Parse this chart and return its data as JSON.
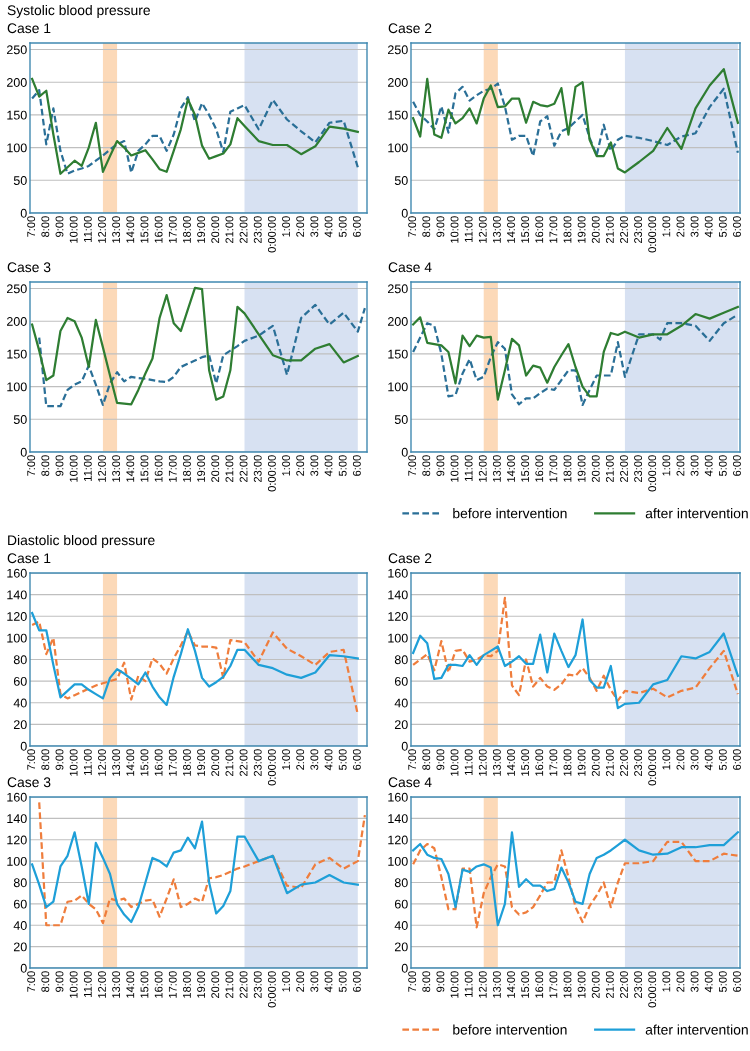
{
  "chart_data": [
    {
      "type": "line",
      "title": "Systolic blood pressure",
      "subtitle": "Case 1",
      "grid": "y",
      "ylim": [
        0,
        260
      ],
      "yticks": [
        0,
        50,
        100,
        150,
        200,
        250
      ],
      "categories": [
        "7:00",
        null,
        "8:00",
        null,
        "9:00",
        null,
        "10:00",
        null,
        "11:00",
        null,
        "12:00",
        null,
        "13:00",
        null,
        "14:00",
        null,
        "15:00",
        null,
        "16:00",
        null,
        "17:00",
        null,
        "18:00",
        null,
        "19:00",
        null,
        "20:00",
        null,
        "21:00",
        null,
        "22:00",
        null,
        "23:00",
        null,
        "0:00:00",
        null,
        "1:00",
        null,
        "2:00",
        null,
        "3:00",
        null,
        "4:00",
        null,
        "5:00",
        null,
        "6:00",
        null
      ],
      "bands": [
        {
          "axis": "x",
          "from": "12:00",
          "to": "13:00",
          "color": "#fcd9b8"
        },
        {
          "axis": "x",
          "from": "22:00",
          "to": "6:00",
          "color": "#d7e1f2"
        }
      ],
      "series": [
        {
          "color": "#2a6f97",
          "line_style": "dashed",
          "values": [
            175,
            188,
            105,
            160,
            95,
            60,
            65,
            68,
            72,
            80,
            88,
            97,
            105,
            110,
            62,
            95,
            105,
            118,
            118,
            95,
            120,
            160,
            177,
            140,
            168,
            150,
            128,
            93,
            155,
            160,
            165,
            null,
            128,
            null,
            173,
            null,
            143,
            null,
            125,
            null,
            108,
            null,
            138,
            null,
            141,
            null,
            70,
            null
          ]
        },
        {
          "color": "#2e7d32",
          "line_style": "solid",
          "values": [
            205,
            178,
            187,
            120,
            60,
            70,
            80,
            72,
            100,
            138,
            63,
            87,
            110,
            100,
            88,
            92,
            96,
            82,
            67,
            63,
            95,
            128,
            174,
            150,
            103,
            83,
            87,
            91,
            105,
            145,
            133,
            null,
            110,
            null,
            104,
            null,
            104,
            null,
            90,
            null,
            102,
            null,
            132,
            null,
            129,
            null,
            124,
            null
          ]
        }
      ]
    },
    {
      "type": "line",
      "subtitle": "Case 2",
      "grid": "y",
      "ylim": [
        0,
        260
      ],
      "yticks": [
        0,
        50,
        100,
        150,
        200,
        250
      ],
      "categories": [
        "7:00",
        null,
        "8:00",
        null,
        "9:00",
        null,
        "10:00",
        null,
        "11:00",
        null,
        "12:00",
        null,
        "13:00",
        null,
        "14:00",
        null,
        "15:00",
        null,
        "16:00",
        null,
        "17:00",
        null,
        "18:00",
        null,
        "19:00",
        null,
        "20:00",
        null,
        "21:00",
        null,
        "22:00",
        null,
        "23:00",
        null,
        "0:00:00",
        null,
        "1:00",
        null,
        "2:00",
        null,
        "3:00",
        null,
        "4:00",
        null,
        "5:00",
        null,
        "6:00"
      ],
      "bands": [
        {
          "axis": "x",
          "from": "12:00",
          "to": "13:00",
          "color": "#fcd9b8"
        },
        {
          "axis": "x",
          "from": "22:00",
          "to": "6:00",
          "color": "#d7e1f2"
        }
      ],
      "series": [
        {
          "color": "#2a6f97",
          "line_style": "dashed",
          "values": [
            170,
            150,
            140,
            128,
            163,
            123,
            183,
            193,
            172,
            180,
            187,
            190,
            198,
            163,
            112,
            118,
            118,
            87,
            140,
            148,
            103,
            125,
            130,
            140,
            150,
            115,
            88,
            135,
            95,
            112,
            118,
            null,
            115,
            null,
            110,
            null,
            104,
            null,
            117,
            null,
            122,
            null,
            162,
            null,
            190,
            null,
            92
          ]
        },
        {
          "color": "#2e7d32",
          "line_style": "solid",
          "values": [
            145,
            117,
            205,
            120,
            115,
            158,
            137,
            145,
            160,
            137,
            175,
            195,
            162,
            163,
            175,
            175,
            138,
            170,
            165,
            163,
            167,
            191,
            120,
            193,
            200,
            112,
            87,
            87,
            108,
            68,
            62,
            null,
            78,
            null,
            95,
            null,
            130,
            null,
            98,
            null,
            160,
            null,
            195,
            null,
            220,
            null,
            138
          ]
        }
      ]
    },
    {
      "type": "line",
      "subtitle": "Case 3",
      "grid": "y",
      "ylim": [
        0,
        260
      ],
      "yticks": [
        0,
        50,
        100,
        150,
        200,
        250
      ],
      "categories": [
        "7:00",
        null,
        "8:00",
        null,
        "9:00",
        null,
        "10:00",
        null,
        "11:00",
        null,
        "12:00",
        null,
        "13:00",
        null,
        "14:00",
        null,
        "15:00",
        null,
        "16:00",
        null,
        "17:00",
        null,
        "18:00",
        null,
        "19:00",
        null,
        "20:00",
        null,
        "21:00",
        null,
        "22:00",
        null,
        "23:00",
        null,
        "0:00:00",
        null,
        "1:00",
        null,
        "2:00",
        null,
        "3:00",
        null,
        "4:00",
        null,
        "5:00",
        null,
        "6:00",
        null
      ],
      "bands": [
        {
          "axis": "x",
          "from": "12:00",
          "to": "13:00",
          "color": "#fcd9b8"
        },
        {
          "axis": "x",
          "from": "22:00",
          "to": "6:00",
          "color": "#d7e1f2"
        }
      ],
      "series": [
        {
          "color": "#2a6f97",
          "line_style": "dashed",
          "values": [
            null,
            175,
            70,
            70,
            70,
            95,
            103,
            108,
            132,
            103,
            72,
            105,
            122,
            108,
            115,
            113,
            112,
            110,
            108,
            107,
            115,
            130,
            135,
            140,
            145,
            148,
            105,
            148,
            155,
            162,
            170,
            null,
            178,
            null,
            193,
            null,
            118,
            null,
            205,
            null,
            225,
            null,
            195,
            null,
            213,
            null,
            184,
            220
          ]
        },
        {
          "color": "#2e7d32",
          "line_style": "solid",
          "values": [
            195,
            155,
            110,
            117,
            185,
            205,
            200,
            175,
            130,
            202,
            160,
            117,
            75,
            74,
            73,
            95,
            120,
            143,
            205,
            240,
            197,
            185,
            218,
            251,
            249,
            125,
            80,
            85,
            125,
            222,
            212,
            null,
            180,
            null,
            148,
            null,
            140,
            null,
            140,
            null,
            158,
            null,
            165,
            null,
            137,
            null,
            147,
            null
          ]
        }
      ]
    },
    {
      "type": "line",
      "subtitle": "Case 4",
      "grid": "y",
      "legend": "bottom",
      "ylim": [
        0,
        260
      ],
      "yticks": [
        0,
        50,
        100,
        150,
        200,
        250
      ],
      "categories": [
        "7:00",
        null,
        "8:00",
        null,
        "9:00",
        null,
        "10:00",
        null,
        "11:00",
        null,
        "12:00",
        null,
        "13:00",
        null,
        "14:00",
        null,
        "15:00",
        null,
        "16:00",
        null,
        "17:00",
        null,
        "18:00",
        null,
        "19:00",
        null,
        "20:00",
        null,
        "21:00",
        null,
        "22:00",
        null,
        "23:00",
        null,
        "0:00:00",
        null,
        "1:00",
        null,
        "2:00",
        null,
        "3:00",
        null,
        "4:00",
        null,
        "5:00",
        null,
        "6:00"
      ],
      "bands": [
        {
          "axis": "x",
          "from": "12:00",
          "to": "13:00",
          "color": "#fcd9b8"
        },
        {
          "axis": "x",
          "from": "22:00",
          "to": "6:00",
          "color": "#d7e1f2"
        }
      ],
      "series": [
        {
          "name": "before intervention",
          "color": "#2a6f97",
          "line_style": "dashed",
          "values": [
            153,
            175,
            197,
            193,
            150,
            85,
            87,
            120,
            142,
            110,
            115,
            145,
            168,
            158,
            88,
            73,
            82,
            82,
            90,
            97,
            95,
            110,
            125,
            125,
            72,
            95,
            117,
            117,
            117,
            168,
            115,
            null,
            180,
            null,
            180,
            172,
            197,
            null,
            197,
            null,
            193,
            null,
            170,
            null,
            197,
            null,
            210
          ]
        },
        {
          "name": "after intervention",
          "color": "#2e7d32",
          "line_style": "solid",
          "values": [
            195,
            206,
            167,
            165,
            163,
            153,
            105,
            178,
            162,
            178,
            175,
            176,
            80,
            125,
            173,
            163,
            117,
            132,
            129,
            106,
            130,
            148,
            165,
            130,
            100,
            85,
            85,
            153,
            182,
            179,
            184,
            null,
            175,
            null,
            180,
            null,
            180,
            null,
            193,
            null,
            211,
            null,
            204,
            null,
            213,
            null,
            222
          ]
        }
      ]
    },
    {
      "type": "line",
      "title": "Diastolic blood pressure",
      "subtitle": "Case 1",
      "grid": "y",
      "ylim": [
        0,
        160
      ],
      "yticks": [
        0,
        20,
        40,
        60,
        80,
        100,
        120,
        140,
        160
      ],
      "categories": [
        "7:00",
        null,
        "8:00",
        null,
        "9:00",
        null,
        "10:00",
        null,
        "11:00",
        null,
        "12:00",
        null,
        "13:00",
        null,
        "14:00",
        null,
        "15:00",
        null,
        "16:00",
        null,
        "17:00",
        null,
        "18:00",
        null,
        "19:00",
        null,
        "20:00",
        null,
        "21:00",
        null,
        "22:00",
        null,
        "23:00",
        null,
        "0:00:00",
        null,
        "1:00",
        null,
        "2:00",
        null,
        "3:00",
        null,
        "4:00",
        null,
        "5:00",
        null,
        "6:00",
        null
      ],
      "bands": [
        {
          "axis": "x",
          "from": "12:00",
          "to": "13:00",
          "color": "#fcd9b8"
        },
        {
          "axis": "x",
          "from": "22:00",
          "to": "6:00",
          "color": "#d7e1f2"
        }
      ],
      "series": [
        {
          "color": "#ef7d3c",
          "line_style": "dashed",
          "values": [
            112,
            115,
            85,
            100,
            48,
            44,
            47,
            50,
            53,
            56,
            58,
            60,
            62,
            77,
            43,
            65,
            60,
            81,
            76,
            67,
            81,
            93,
            106,
            93,
            92,
            92,
            91,
            63,
            98,
            97,
            96,
            null,
            78,
            null,
            105,
            null,
            90,
            null,
            83,
            null,
            75,
            null,
            87,
            null,
            89,
            null,
            29,
            null
          ]
        },
        {
          "color": "#1e9fd8",
          "line_style": "solid",
          "values": [
            123,
            107,
            107,
            75,
            45,
            51,
            57,
            57,
            52,
            48,
            44,
            63,
            71,
            67,
            62,
            57,
            68,
            55,
            45,
            38,
            64,
            85,
            108,
            88,
            63,
            55,
            59,
            64,
            74,
            89,
            89,
            null,
            75,
            null,
            72,
            null,
            66,
            null,
            63,
            null,
            68,
            null,
            84,
            null,
            83,
            null,
            81,
            null
          ]
        }
      ]
    },
    {
      "type": "line",
      "subtitle": "Case 2",
      "grid": "y",
      "ylim": [
        0,
        160
      ],
      "yticks": [
        0,
        20,
        40,
        60,
        80,
        100,
        120,
        140,
        160
      ],
      "categories": [
        "7:00",
        null,
        "8:00",
        null,
        "9:00",
        null,
        "10:00",
        null,
        "11:00",
        null,
        "12:00",
        null,
        "13:00",
        null,
        "14:00",
        null,
        "15:00",
        null,
        "16:00",
        null,
        "17:00",
        null,
        "18:00",
        null,
        "19:00",
        null,
        "20:00",
        null,
        "21:00",
        null,
        "22:00",
        null,
        "23:00",
        null,
        "0:00:00",
        null,
        "1:00",
        null,
        "2:00",
        null,
        "3:00",
        null,
        "4:00",
        null,
        "5:00",
        null,
        "6:00"
      ],
      "bands": [
        {
          "axis": "x",
          "from": "12:00",
          "to": "13:00",
          "color": "#fcd9b8"
        },
        {
          "axis": "x",
          "from": "22:00",
          "to": "6:00",
          "color": "#d7e1f2"
        }
      ],
      "series": [
        {
          "color": "#ef7d3c",
          "line_style": "dashed",
          "values": [
            75,
            80,
            85,
            70,
            97,
            68,
            88,
            89,
            78,
            80,
            84,
            83,
            88,
            137,
            56,
            47,
            80,
            55,
            63,
            55,
            52,
            57,
            66,
            65,
            72,
            63,
            51,
            65,
            52,
            42,
            51,
            null,
            49,
            null,
            53,
            null,
            45,
            null,
            51,
            null,
            54,
            null,
            72,
            null,
            88,
            null,
            48
          ]
        },
        {
          "color": "#1e9fd8",
          "line_style": "solid",
          "values": [
            86,
            102,
            95,
            62,
            63,
            75,
            75,
            74,
            84,
            75,
            84,
            88,
            92,
            74,
            78,
            83,
            76,
            76,
            103,
            68,
            104,
            88,
            73,
            84,
            117,
            61,
            54,
            54,
            74,
            35,
            39,
            null,
            40,
            null,
            57,
            null,
            61,
            null,
            83,
            null,
            81,
            null,
            87,
            null,
            104,
            null,
            65
          ]
        }
      ]
    },
    {
      "type": "line",
      "subtitle": "Case 3",
      "grid": "y",
      "ylim": [
        0,
        160
      ],
      "yticks": [
        0,
        20,
        40,
        60,
        80,
        100,
        120,
        140,
        160
      ],
      "categories": [
        "7:00",
        null,
        "8:00",
        null,
        "9:00",
        null,
        "10:00",
        null,
        "11:00",
        null,
        "12:00",
        null,
        "13:00",
        null,
        "14:00",
        null,
        "15:00",
        null,
        "16:00",
        null,
        "17:00",
        null,
        "18:00",
        null,
        "19:00",
        null,
        "20:00",
        null,
        "21:00",
        null,
        "22:00",
        null,
        "23:00",
        null,
        "0:00:00",
        null,
        "1:00",
        null,
        "2:00",
        null,
        "3:00",
        null,
        "4:00",
        null,
        "5:00",
        null,
        "6:00",
        null
      ],
      "bands": [
        {
          "axis": "x",
          "from": "12:00",
          "to": "13:00",
          "color": "#fcd9b8"
        },
        {
          "axis": "x",
          "from": "22:00",
          "to": "6:00",
          "color": "#d7e1f2"
        }
      ],
      "series": [
        {
          "color": "#ef7d3c",
          "line_style": "dashed",
          "values": [
            null,
            155,
            40,
            40,
            40,
            62,
            63,
            68,
            60,
            55,
            42,
            65,
            63,
            65,
            57,
            60,
            63,
            64,
            48,
            65,
            83,
            57,
            60,
            65,
            62,
            84,
            85,
            87,
            90,
            93,
            95,
            null,
            100,
            null,
            105,
            null,
            77,
            null,
            75,
            null,
            97,
            null,
            103,
            null,
            93,
            null,
            100,
            143
          ]
        },
        {
          "color": "#1e9fd8",
          "line_style": "solid",
          "values": [
            97,
            78,
            57,
            62,
            95,
            105,
            127,
            95,
            60,
            117,
            103,
            88,
            60,
            50,
            43,
            57,
            80,
            103,
            100,
            95,
            108,
            110,
            122,
            112,
            137,
            80,
            51,
            58,
            72,
            123,
            123,
            null,
            100,
            null,
            105,
            null,
            70,
            null,
            78,
            null,
            80,
            null,
            87,
            null,
            80,
            null,
            78,
            null
          ]
        }
      ]
    },
    {
      "type": "line",
      "subtitle": "Case 4",
      "grid": "y",
      "legend": "bottom",
      "ylim": [
        0,
        160
      ],
      "yticks": [
        0,
        20,
        40,
        60,
        80,
        100,
        120,
        140,
        160
      ],
      "categories": [
        "7:00",
        null,
        "8:00",
        null,
        "9:00",
        null,
        "10:00",
        null,
        "11:00",
        null,
        "12:00",
        null,
        "13:00",
        null,
        "14:00",
        null,
        "15:00",
        null,
        "16:00",
        null,
        "17:00",
        null,
        "18:00",
        null,
        "19:00",
        null,
        "20:00",
        null,
        "21:00",
        null,
        "22:00",
        null,
        "23:00",
        null,
        "0:00:00",
        null,
        "1:00",
        null,
        "2:00",
        null,
        "3:00",
        null,
        "4:00",
        null,
        "5:00",
        null,
        "6:00"
      ],
      "bands": [
        {
          "axis": "x",
          "from": "12:00",
          "to": "13:00",
          "color": "#fcd9b8"
        },
        {
          "axis": "x",
          "from": "22:00",
          "to": "6:00",
          "color": "#d7e1f2"
        }
      ],
      "series": [
        {
          "name": "before intervention",
          "color": "#ef7d3c",
          "line_style": "dashed",
          "values": [
            97,
            110,
            116,
            112,
            85,
            55,
            55,
            93,
            93,
            38,
            70,
            85,
            97,
            95,
            57,
            50,
            52,
            57,
            68,
            80,
            80,
            110,
            85,
            57,
            43,
            58,
            68,
            80,
            57,
            80,
            98,
            null,
            98,
            null,
            100,
            null,
            118,
            null,
            118,
            null,
            100,
            null,
            100,
            null,
            107,
            null,
            105
          ]
        },
        {
          "name": "after intervention",
          "color": "#1e9fd8",
          "line_style": "solid",
          "values": [
            110,
            116,
            106,
            103,
            102,
            88,
            57,
            92,
            90,
            95,
            97,
            94,
            40,
            60,
            127,
            76,
            83,
            77,
            77,
            72,
            74,
            94,
            80,
            62,
            60,
            88,
            103,
            106,
            110,
            115,
            120,
            null,
            110,
            null,
            106,
            null,
            107,
            null,
            113,
            null,
            113,
            null,
            115,
            null,
            115,
            null,
            127
          ]
        }
      ]
    }
  ]
}
